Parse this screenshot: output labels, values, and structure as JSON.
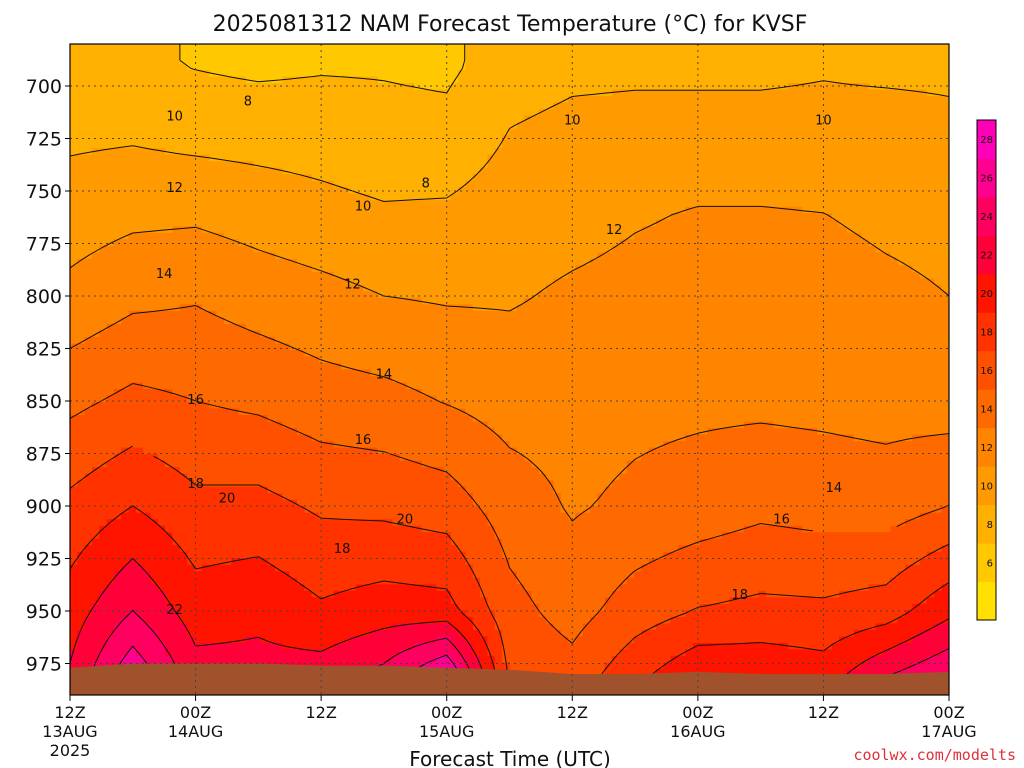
{
  "chart_data": {
    "type": "heatmap",
    "title": "2025081312 NAM Forecast Temperature (°C) for KVSF",
    "xlabel": "Forecast Time (UTC)",
    "ylabel": "",
    "credit": "coolwx.com/modelts",
    "x_range_hours": [
      0,
      84
    ],
    "y_range_hpa": [
      680,
      990
    ],
    "y_scale": "pressure (inverted, higher pressure at bottom)",
    "y_ticks": [
      700,
      725,
      750,
      775,
      800,
      825,
      850,
      875,
      900,
      925,
      950,
      975
    ],
    "x_ticks": [
      {
        "hour": 0,
        "time": "12Z",
        "date": "13AUG",
        "year": "2025"
      },
      {
        "hour": 12,
        "time": "00Z",
        "date": "14AUG",
        "year": ""
      },
      {
        "hour": 24,
        "time": "12Z",
        "date": "",
        "year": ""
      },
      {
        "hour": 36,
        "time": "00Z",
        "date": "15AUG",
        "year": ""
      },
      {
        "hour": 48,
        "time": "12Z",
        "date": "",
        "year": ""
      },
      {
        "hour": 60,
        "time": "00Z",
        "date": "16AUG",
        "year": ""
      },
      {
        "hour": 72,
        "time": "12Z",
        "date": "",
        "year": ""
      },
      {
        "hour": 84,
        "time": "00Z",
        "date": "17AUG",
        "year": ""
      }
    ],
    "grid": true,
    "colorbar": {
      "placement": "right",
      "levels": [
        4,
        6,
        8,
        10,
        12,
        14,
        16,
        18,
        20,
        22,
        24,
        26,
        28,
        30
      ],
      "tick_labels": [
        "6",
        "8",
        "10",
        "12",
        "14",
        "16",
        "18",
        "20",
        "22",
        "24",
        "26",
        "28"
      ],
      "colors": [
        "#FFE000",
        "#FFC800",
        "#FFB000",
        "#FF9A00",
        "#FF8400",
        "#FF6A00",
        "#FF5000",
        "#FF3200",
        "#FF1400",
        "#FF0038",
        "#FF0060",
        "#FF0090",
        "#FF00B8"
      ]
    },
    "ground_color": "#A0522D",
    "contour_labels": [
      {
        "value": "8",
        "hour": 17,
        "p": 707
      },
      {
        "value": "8",
        "hour": 34,
        "p": 746
      },
      {
        "value": "10",
        "hour": 10,
        "p": 714
      },
      {
        "value": "10",
        "hour": 48,
        "p": 716
      },
      {
        "value": "10",
        "hour": 72,
        "p": 716
      },
      {
        "value": "10",
        "hour": 28,
        "p": 757
      },
      {
        "value": "12",
        "hour": 10,
        "p": 748
      },
      {
        "value": "12",
        "hour": 52,
        "p": 768
      },
      {
        "value": "12",
        "hour": 27,
        "p": 794
      },
      {
        "value": "14",
        "hour": 9,
        "p": 789
      },
      {
        "value": "14",
        "hour": 30,
        "p": 837
      },
      {
        "value": "14",
        "hour": 73,
        "p": 891
      },
      {
        "value": "16",
        "hour": 12,
        "p": 849
      },
      {
        "value": "16",
        "hour": 28,
        "p": 868
      },
      {
        "value": "16",
        "hour": 68,
        "p": 906
      },
      {
        "value": "18",
        "hour": 12,
        "p": 889
      },
      {
        "value": "18",
        "hour": 26,
        "p": 920
      },
      {
        "value": "18",
        "hour": 64,
        "p": 942
      },
      {
        "value": "20",
        "hour": 15,
        "p": 896
      },
      {
        "value": "20",
        "hour": 32,
        "p": 906
      },
      {
        "value": "22",
        "hour": 10,
        "p": 949
      }
    ],
    "temperature_at_hour": [
      {
        "hour": 0,
        "profile": [
          [
            690,
            8.5
          ],
          [
            720,
            9.5
          ],
          [
            760,
            11
          ],
          [
            800,
            12.5
          ],
          [
            850,
            15.5
          ],
          [
            900,
            18.5
          ],
          [
            950,
            21
          ],
          [
            975,
            22
          ]
        ]
      },
      {
        "hour": 6,
        "profile": [
          [
            690,
            8.3
          ],
          [
            720,
            9.6
          ],
          [
            760,
            11.5
          ],
          [
            800,
            13.5
          ],
          [
            850,
            16.5
          ],
          [
            900,
            20
          ],
          [
            950,
            24
          ],
          [
            975,
            27
          ]
        ]
      },
      {
        "hour": 12,
        "profile": [
          [
            690,
            7.9
          ],
          [
            720,
            9.2
          ],
          [
            760,
            11.6
          ],
          [
            800,
            13.8
          ],
          [
            850,
            16
          ],
          [
            900,
            18.5
          ],
          [
            950,
            21
          ],
          [
            975,
            22.5
          ]
        ]
      },
      {
        "hour": 18,
        "profile": [
          [
            690,
            7.6
          ],
          [
            720,
            9.1
          ],
          [
            760,
            11.1
          ],
          [
            800,
            13.1
          ],
          [
            850,
            15.6
          ],
          [
            900,
            18.6
          ],
          [
            950,
            21.5
          ],
          [
            975,
            22.5
          ]
        ]
      },
      {
        "hour": 24,
        "profile": [
          [
            690,
            7.8
          ],
          [
            720,
            9.0
          ],
          [
            760,
            10.6
          ],
          [
            800,
            12.6
          ],
          [
            850,
            14.9
          ],
          [
            900,
            17.7
          ],
          [
            950,
            20.3
          ],
          [
            975,
            22.5
          ]
        ]
      },
      {
        "hour": 30,
        "profile": [
          [
            690,
            7.8
          ],
          [
            720,
            8.6
          ],
          [
            760,
            10.2
          ],
          [
            800,
            12.0
          ],
          [
            850,
            14.6
          ],
          [
            900,
            17.5
          ],
          [
            950,
            21
          ],
          [
            975,
            24
          ]
        ]
      },
      {
        "hour": 36,
        "profile": [
          [
            690,
            7.6
          ],
          [
            720,
            8.5
          ],
          [
            760,
            10.3
          ],
          [
            800,
            11.8
          ],
          [
            850,
            13.9
          ],
          [
            900,
            17.0
          ],
          [
            950,
            20.8
          ],
          [
            975,
            27
          ]
        ]
      },
      {
        "hour": 42,
        "profile": [
          [
            690,
            9.0
          ],
          [
            720,
            10.0
          ],
          [
            760,
            11.0
          ],
          [
            800,
            11.8
          ],
          [
            850,
            13.2
          ],
          [
            900,
            15.0
          ],
          [
            950,
            16.7
          ],
          [
            975,
            17.5
          ]
        ]
      },
      {
        "hour": 48,
        "profile": [
          [
            690,
            9.5
          ],
          [
            720,
            10.5
          ],
          [
            760,
            11.3
          ],
          [
            800,
            12.3
          ],
          [
            850,
            13.2
          ],
          [
            900,
            13.8
          ],
          [
            950,
            15.2
          ],
          [
            975,
            16.5
          ]
        ]
      },
      {
        "hour": 54,
        "profile": [
          [
            690,
            9.6
          ],
          [
            720,
            10.6
          ],
          [
            760,
            11.8
          ],
          [
            800,
            12.6
          ],
          [
            850,
            13.5
          ],
          [
            900,
            14.4
          ],
          [
            950,
            17.0
          ],
          [
            975,
            19.0
          ]
        ]
      },
      {
        "hour": 60,
        "profile": [
          [
            690,
            9.6
          ],
          [
            720,
            10.6
          ],
          [
            760,
            12.1
          ],
          [
            800,
            12.8
          ],
          [
            850,
            13.6
          ],
          [
            900,
            14.9
          ],
          [
            950,
            18.1
          ],
          [
            975,
            21.0
          ]
        ]
      },
      {
        "hour": 66,
        "profile": [
          [
            690,
            9.6
          ],
          [
            720,
            10.6
          ],
          [
            760,
            12.1
          ],
          [
            800,
            12.9
          ],
          [
            850,
            13.6
          ],
          [
            900,
            15.5
          ],
          [
            950,
            18.5
          ],
          [
            975,
            21
          ]
        ]
      },
      {
        "hour": 72,
        "profile": [
          [
            690,
            9.8
          ],
          [
            720,
            10.6
          ],
          [
            760,
            12.0
          ],
          [
            800,
            12.8
          ],
          [
            850,
            13.5
          ],
          [
            900,
            15.2
          ],
          [
            950,
            18.4
          ],
          [
            975,
            20.5
          ]
        ]
      },
      {
        "hour": 78,
        "profile": [
          [
            690,
            9.6
          ],
          [
            720,
            10.7
          ],
          [
            760,
            11.6
          ],
          [
            800,
            12.4
          ],
          [
            850,
            13.3
          ],
          [
            900,
            15.0
          ],
          [
            950,
            19.0
          ],
          [
            975,
            23
          ]
        ]
      },
      {
        "hour": 84,
        "profile": [
          [
            690,
            9.6
          ],
          [
            720,
            10.4
          ],
          [
            760,
            11.4
          ],
          [
            800,
            12.0
          ],
          [
            850,
            13.1
          ],
          [
            900,
            16.0
          ],
          [
            950,
            21.5
          ],
          [
            975,
            25
          ]
        ]
      }
    ],
    "surface_pressure_at_hour": [
      {
        "hour": 0,
        "p": 977
      },
      {
        "hour": 6,
        "p": 975
      },
      {
        "hour": 12,
        "p": 975
      },
      {
        "hour": 18,
        "p": 975
      },
      {
        "hour": 24,
        "p": 976
      },
      {
        "hour": 30,
        "p": 976
      },
      {
        "hour": 36,
        "p": 977
      },
      {
        "hour": 42,
        "p": 978
      },
      {
        "hour": 48,
        "p": 980
      },
      {
        "hour": 54,
        "p": 980
      },
      {
        "hour": 60,
        "p": 979
      },
      {
        "hour": 66,
        "p": 980
      },
      {
        "hour": 72,
        "p": 980
      },
      {
        "hour": 78,
        "p": 980
      },
      {
        "hour": 84,
        "p": 979
      }
    ]
  }
}
